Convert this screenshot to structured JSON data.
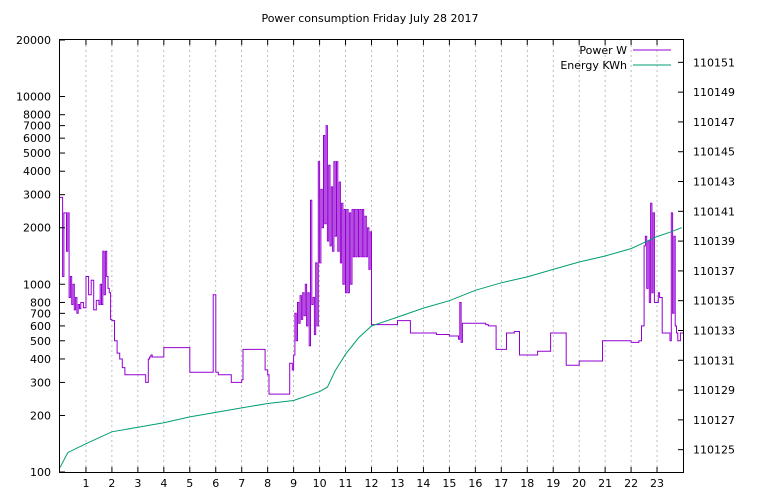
{
  "chart_data": {
    "type": "line",
    "title": "Power consumption Friday July 28 2017",
    "xlabel": "",
    "ylabel": "",
    "y2label": "",
    "xlim": [
      0,
      24
    ],
    "ylim": [
      100,
      20000
    ],
    "yscale": "log",
    "y2lim": [
      110123.5,
      110152.5
    ],
    "grid": true,
    "legend_position": "top-right",
    "x_ticks": [
      1,
      2,
      3,
      4,
      5,
      6,
      7,
      8,
      9,
      10,
      11,
      12,
      13,
      14,
      15,
      16,
      17,
      18,
      19,
      20,
      21,
      22,
      23
    ],
    "y_ticks": [
      100,
      200,
      300,
      400,
      500,
      600,
      700,
      800,
      1000,
      2000,
      3000,
      4000,
      5000,
      6000,
      7000,
      8000,
      10000,
      20000
    ],
    "y2_ticks": [
      110125,
      110127,
      110129,
      110131,
      110133,
      110135,
      110137,
      110139,
      110141,
      110143,
      110145,
      110147,
      110149,
      110151
    ],
    "series": [
      {
        "name": "Power W",
        "axis": "left",
        "color": "#9400d3",
        "x": [
          0,
          0.1,
          0.15,
          0.25,
          0.3,
          0.35,
          0.4,
          0.45,
          0.5,
          0.55,
          0.6,
          0.65,
          0.7,
          0.75,
          0.8,
          0.9,
          1.0,
          1.1,
          1.2,
          1.3,
          1.4,
          1.5,
          1.55,
          1.6,
          1.65,
          1.7,
          1.75,
          1.8,
          1.85,
          1.9,
          1.95,
          2.0,
          2.1,
          2.2,
          2.3,
          2.4,
          2.5,
          2.6,
          2.7,
          3.0,
          3.3,
          3.4,
          3.45,
          3.5,
          3.55,
          4.0,
          4.1,
          4.5,
          4.9,
          5.0,
          5.1,
          5.5,
          5.8,
          5.9,
          6.0,
          6.05,
          6.1,
          6.5,
          6.6,
          6.8,
          7.0,
          7.05,
          7.4,
          7.6,
          7.9,
          8.0,
          8.05,
          8.8,
          8.85,
          8.9,
          8.95,
          9.0,
          9.05,
          9.1,
          9.15,
          9.2,
          9.25,
          9.3,
          9.35,
          9.4,
          9.45,
          9.5,
          9.55,
          9.6,
          9.65,
          9.7,
          9.75,
          9.8,
          9.85,
          9.9,
          9.95,
          10.0,
          10.05,
          10.1,
          10.15,
          10.2,
          10.25,
          10.3,
          10.35,
          10.4,
          10.45,
          10.5,
          10.55,
          10.6,
          10.65,
          10.7,
          10.75,
          10.8,
          10.85,
          10.9,
          10.95,
          11.0,
          11.05,
          11.1,
          11.15,
          11.2,
          11.25,
          11.3,
          11.35,
          11.4,
          11.45,
          11.5,
          11.55,
          11.6,
          11.65,
          11.7,
          11.75,
          11.8,
          11.85,
          11.9,
          11.95,
          12.0,
          12.5,
          13.0,
          13.4,
          13.5,
          14.0,
          14.5,
          15.0,
          15.2,
          15.3,
          15.35,
          15.4,
          15.45,
          15.5,
          16.0,
          16.3,
          16.4,
          16.5,
          16.8,
          17.0,
          17.2,
          17.5,
          17.7,
          17.9,
          18.0,
          18.4,
          18.5,
          18.9,
          19.0,
          19.4,
          19.5,
          20.0,
          20.4,
          20.5,
          20.9,
          21.0,
          21.5,
          22.0,
          22.3,
          22.4,
          22.5,
          22.55,
          22.6,
          22.65,
          22.7,
          22.75,
          22.8,
          22.85,
          22.9,
          23.0,
          23.05,
          23.1,
          23.2,
          23.3,
          23.4,
          23.45,
          23.5,
          23.55,
          23.6,
          23.65,
          23.7,
          23.75,
          23.8,
          23.9
        ],
        "y": [
          2900,
          1100,
          2400,
          1500,
          2400,
          850,
          1100,
          780,
          1000,
          730,
          850,
          700,
          780,
          740,
          800,
          750,
          1100,
          880,
          1050,
          730,
          820,
          780,
          1000,
          780,
          1500,
          880,
          1500,
          1100,
          950,
          900,
          650,
          640,
          500,
          430,
          400,
          360,
          330,
          330,
          330,
          330,
          300,
          400,
          410,
          420,
          410,
          460,
          460,
          460,
          460,
          340,
          340,
          340,
          340,
          880,
          340,
          340,
          330,
          330,
          300,
          300,
          310,
          450,
          450,
          450,
          350,
          330,
          260,
          260,
          380,
          380,
          350,
          420,
          700,
          500,
          800,
          620,
          870,
          650,
          900,
          680,
          1000,
          600,
          900,
          470,
          2800,
          780,
          850,
          540,
          1300,
          600,
          4500,
          1300,
          3200,
          2000,
          6200,
          2100,
          7000,
          1700,
          4300,
          1600,
          3300,
          1500,
          4500,
          1800,
          4500,
          1500,
          3500,
          1300,
          2700,
          1000,
          2500,
          900,
          2500,
          900,
          2400,
          1000,
          2500,
          1400,
          2500,
          1400,
          2500,
          1400,
          2500,
          1400,
          2500,
          1400,
          2300,
          1400,
          2000,
          1200,
          1900,
          610,
          610,
          640,
          640,
          550,
          550,
          540,
          530,
          530,
          530,
          510,
          800,
          490,
          620,
          620,
          620,
          610,
          600,
          450,
          450,
          550,
          560,
          420,
          420,
          420,
          440,
          440,
          550,
          550,
          550,
          370,
          390,
          390,
          390,
          500,
          500,
          500,
          490,
          500,
          600,
          1600,
          1800,
          950,
          1700,
          800,
          2700,
          900,
          2400,
          800,
          800,
          900,
          850,
          550,
          550,
          550,
          550,
          500,
          2400,
          700,
          1800,
          600,
          550,
          500,
          550
        ]
      },
      {
        "name": "Energy KWh",
        "axis": "right",
        "color": "#009e73",
        "x": [
          0,
          0.3,
          1.0,
          2.0,
          3.0,
          4.0,
          5.0,
          6.0,
          7.0,
          8.0,
          9.0,
          10.0,
          10.3,
          10.6,
          11.0,
          11.5,
          12.0,
          13.0,
          14.0,
          15.0,
          16.0,
          17.0,
          18.0,
          19.0,
          20.0,
          21.0,
          22.0,
          22.5,
          23.0,
          23.5,
          23.95
        ],
        "y": [
          110123.8,
          110124.8,
          110125.4,
          110126.2,
          110126.5,
          110126.8,
          110127.2,
          110127.5,
          110127.8,
          110128.1,
          110128.3,
          110128.9,
          110129.2,
          110130.3,
          110131.4,
          110132.5,
          110133.3,
          110133.9,
          110134.5,
          110135.0,
          110135.7,
          110136.2,
          110136.6,
          110137.1,
          110137.6,
          110138.0,
          110138.5,
          110138.9,
          110139.3,
          110139.6,
          110139.9
        ]
      }
    ]
  }
}
